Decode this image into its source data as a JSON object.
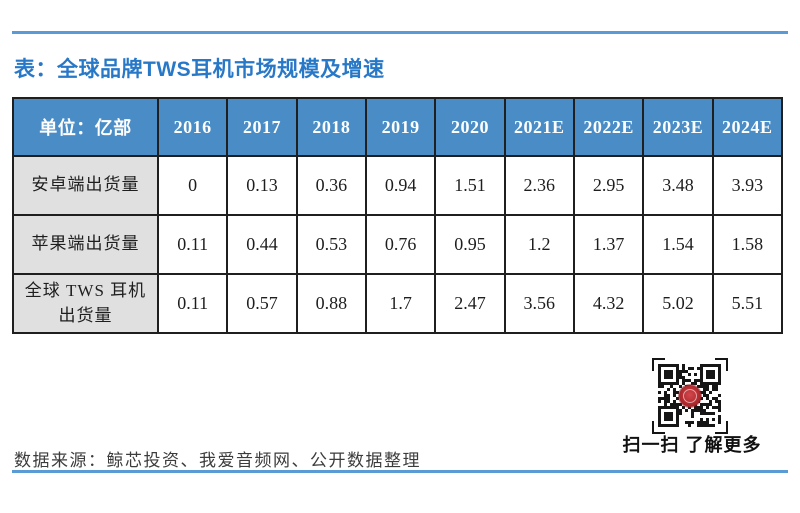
{
  "header": {
    "title": "表：全球品牌TWS耳机市场规模及增速"
  },
  "table": {
    "unit_header": "单位：亿部",
    "years": [
      "2016",
      "2017",
      "2018",
      "2019",
      "2020",
      "2021E",
      "2022E",
      "2023E",
      "2024E"
    ],
    "rows": [
      {
        "label": "安卓端出货量",
        "values": [
          "0",
          "0.13",
          "0.36",
          "0.94",
          "1.51",
          "2.36",
          "2.95",
          "3.48",
          "3.93"
        ]
      },
      {
        "label": "苹果端出货量",
        "values": [
          "0.11",
          "0.44",
          "0.53",
          "0.76",
          "0.95",
          "1.2",
          "1.37",
          "1.54",
          "1.58"
        ]
      },
      {
        "label": "全球 TWS 耳机出货量",
        "values": [
          "0.11",
          "0.57",
          "0.88",
          "1.7",
          "2.47",
          "3.56",
          "4.32",
          "5.02",
          "5.51"
        ]
      }
    ]
  },
  "qr": {
    "caption": "扫一扫 了解更多"
  },
  "footer": {
    "source": "数据来源：鲸芯投资、我爱音频网、公开数据整理"
  },
  "colors": {
    "header_bg": "#4a8dc6",
    "label_bg": "#e0e0e0",
    "title_blue": "#2878c8",
    "rule_blue": "#5b9bd5",
    "border": "#1f1f1f",
    "seal_red": "#b02a2e"
  },
  "chart_data": {
    "type": "table",
    "title": "表：全球品牌TWS耳机市场规模及增速",
    "unit": "亿部",
    "x": [
      "2016",
      "2017",
      "2018",
      "2019",
      "2020",
      "2021E",
      "2022E",
      "2023E",
      "2024E"
    ],
    "series": [
      {
        "name": "安卓端出货量",
        "values": [
          0,
          0.13,
          0.36,
          0.94,
          1.51,
          2.36,
          2.95,
          3.48,
          3.93
        ]
      },
      {
        "name": "苹果端出货量",
        "values": [
          0.11,
          0.44,
          0.53,
          0.76,
          0.95,
          1.2,
          1.37,
          1.54,
          1.58
        ]
      },
      {
        "name": "全球 TWS 耳机出货量",
        "values": [
          0.11,
          0.57,
          0.88,
          1.7,
          2.47,
          3.56,
          4.32,
          5.02,
          5.51
        ]
      }
    ],
    "source": "数据来源：鲸芯投资、我爱音频网、公开数据整理"
  }
}
